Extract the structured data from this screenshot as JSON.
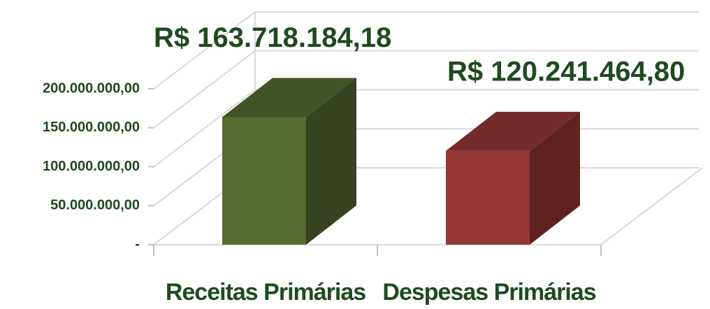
{
  "chart_data": {
    "type": "bar",
    "categories": [
      "Receitas Primárias",
      "Despesas Primárias"
    ],
    "values": [
      163718184.18,
      120241464.8
    ],
    "value_labels": [
      "R$ 163.718.184,18",
      "R$ 120.241.464,80"
    ],
    "colors": [
      "#556b2f",
      "#953735"
    ],
    "ylim": [
      0,
      200000000
    ],
    "yticks": [
      {
        "value": 0,
        "label": "-"
      },
      {
        "value": 50000000,
        "label": "50.000.000,00"
      },
      {
        "value": 100000000,
        "label": "100.000.000,00"
      },
      {
        "value": 150000000,
        "label": "150.000.000,00"
      },
      {
        "value": 200000000,
        "label": "200.000.000,00"
      }
    ],
    "grid": true
  }
}
